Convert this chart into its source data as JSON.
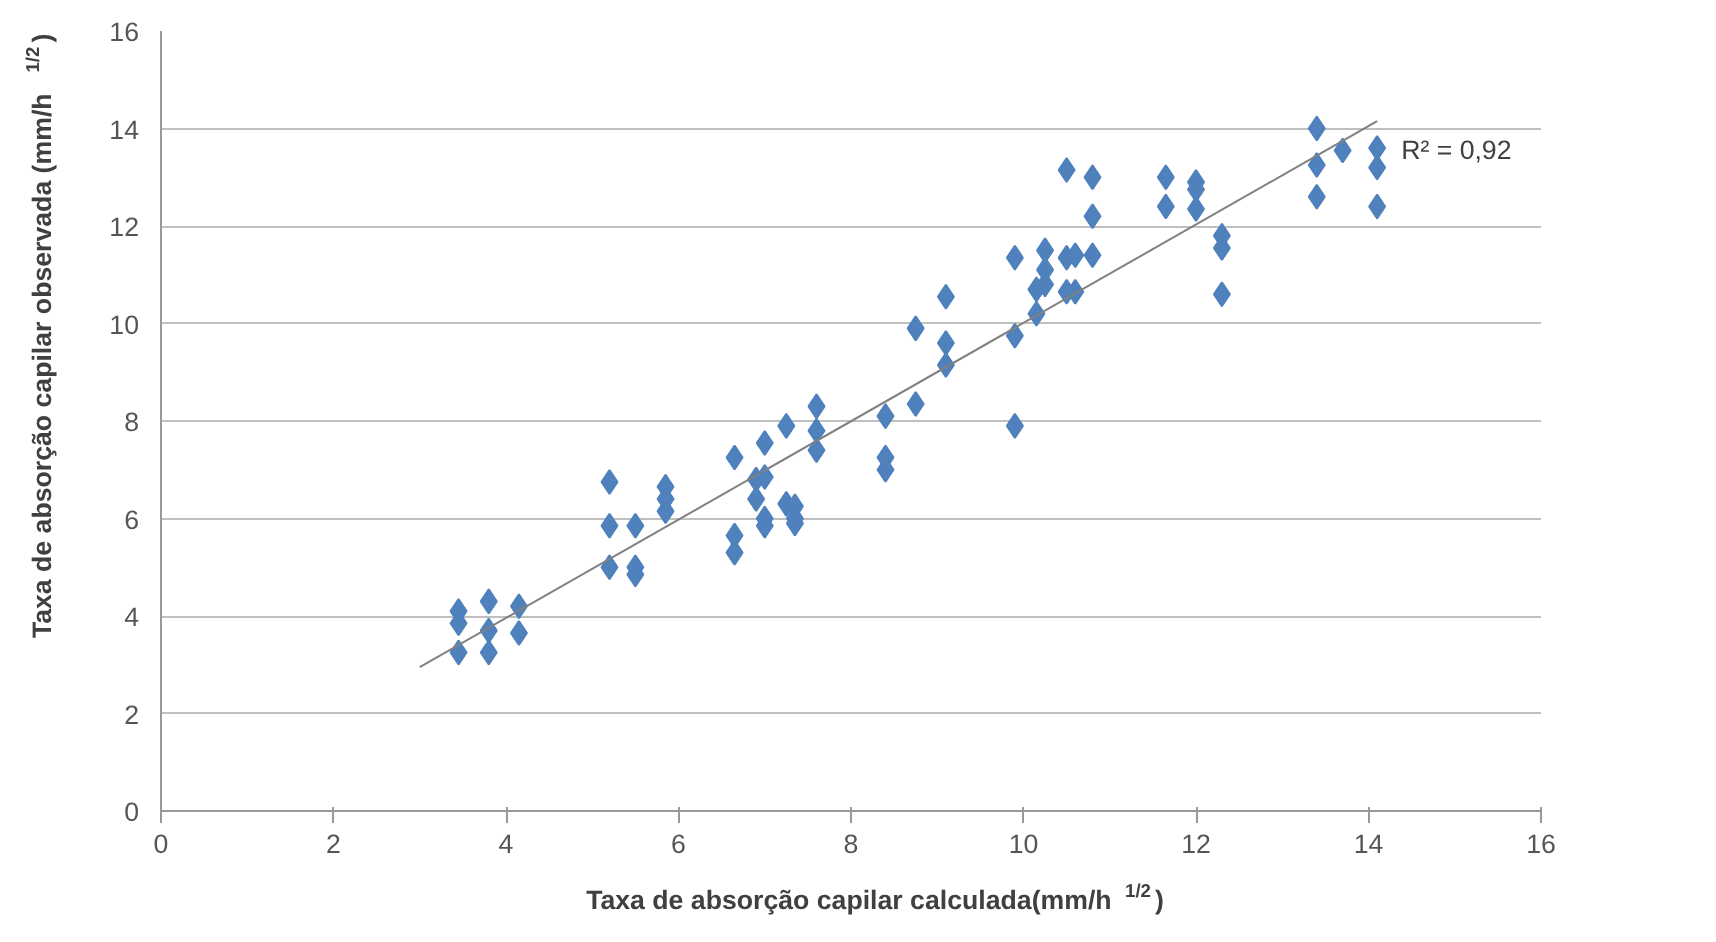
{
  "chart_data": {
    "type": "scatter",
    "xlabel": "Taxa de absorção capilar calculada(mm/h $^{1/2}$)",
    "ylabel": "Taxa de absorção capilar  observada (mm/h $^{1/2}$)",
    "xlim": [
      0,
      16
    ],
    "ylim": [
      0,
      16
    ],
    "xticks": [
      0,
      2,
      4,
      6,
      8,
      10,
      12,
      14,
      16
    ],
    "yticks": [
      0,
      2,
      4,
      6,
      8,
      10,
      12,
      14,
      16
    ],
    "grid": "y",
    "series": [
      {
        "marker": "diamond",
        "color": "#4f81bd",
        "x": [
          3.45,
          3.45,
          3.45,
          3.8,
          3.8,
          3.8,
          4.15,
          4.15,
          5.2,
          5.2,
          5.2,
          5.5,
          5.5,
          5.5,
          5.85,
          5.85,
          5.85,
          6.65,
          6.65,
          6.65,
          6.9,
          6.9,
          7.0,
          7.0,
          7.0,
          7.0,
          7.25,
          7.25,
          7.35,
          7.35,
          7.35,
          7.6,
          7.6,
          7.6,
          8.4,
          8.4,
          8.4,
          8.75,
          8.75,
          9.1,
          9.1,
          9.1,
          9.9,
          9.9,
          9.9,
          10.15,
          10.15,
          10.25,
          10.25,
          10.25,
          10.5,
          10.5,
          10.5,
          10.6,
          10.6,
          10.8,
          10.8,
          10.8,
          11.65,
          11.65,
          12.0,
          12.0,
          12.0,
          12.3,
          12.3,
          12.3,
          13.4,
          13.4,
          13.4,
          13.7,
          14.1,
          14.1,
          14.1
        ],
        "values": [
          4.1,
          3.85,
          3.25,
          4.3,
          3.7,
          3.25,
          4.2,
          3.65,
          6.75,
          5.85,
          5.0,
          5.85,
          5.0,
          4.85,
          6.65,
          6.4,
          6.15,
          7.25,
          5.65,
          5.3,
          6.8,
          6.4,
          7.55,
          6.85,
          6.0,
          5.85,
          7.9,
          6.3,
          6.25,
          6.0,
          5.9,
          8.3,
          7.8,
          7.4,
          8.1,
          7.25,
          7.0,
          9.9,
          8.35,
          10.55,
          9.6,
          9.15,
          11.35,
          9.75,
          7.9,
          10.7,
          10.2,
          11.5,
          11.1,
          10.8,
          13.15,
          11.35,
          10.65,
          11.4,
          10.65,
          13.0,
          12.2,
          11.4,
          13.0,
          12.4,
          12.9,
          12.75,
          12.35,
          11.8,
          11.55,
          10.6,
          14.0,
          13.25,
          12.6,
          13.55,
          13.6,
          13.2,
          12.4
        ]
      },
      {
        "type": "line",
        "marker": "none",
        "color": "#808080",
        "x": [
          3.0,
          14.1
        ],
        "values": [
          2.95,
          14.15
        ]
      }
    ],
    "annotations": [
      "R² = 0,92"
    ]
  }
}
